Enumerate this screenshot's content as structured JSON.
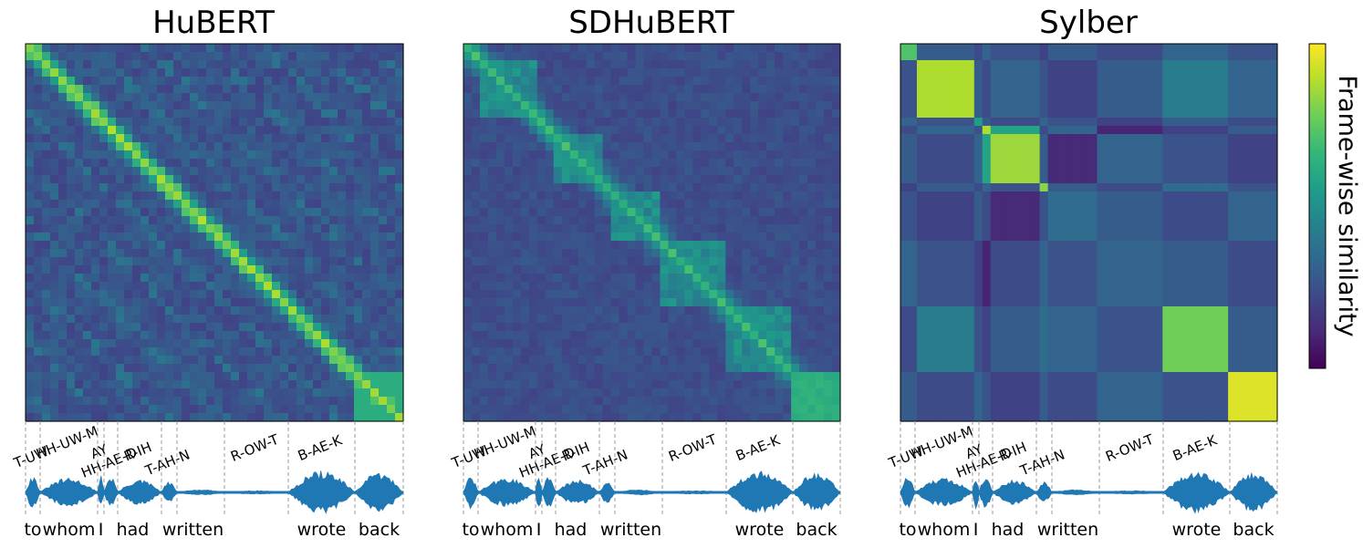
{
  "colors": {
    "viridis": [
      "#440154",
      "#482878",
      "#3e4989",
      "#31688e",
      "#26828e",
      "#1f9e89",
      "#35b779",
      "#6ece58",
      "#b5de2b",
      "#fde725"
    ],
    "waveform": "#1f77b4",
    "boundary": "#9a9a9a"
  },
  "chart_data": [
    {
      "type": "heatmap",
      "title": "HuBERT",
      "model": "hubert",
      "phones": [
        "T-UW",
        "HH-UW-M",
        "AY",
        "HH-AE-D",
        "R-IH",
        "T-AH-N",
        "R-OW-T",
        "B-AE-K"
      ],
      "words": [
        "to",
        "whom",
        "I",
        "had",
        "written",
        "wrote",
        "back"
      ]
    },
    {
      "type": "heatmap",
      "title": "SDHuBERT",
      "model": "sdhubert",
      "phones": [
        "T-UW",
        "HH-UW-M",
        "AY",
        "HH-AE-D",
        "R-IH",
        "T-AH-N",
        "R-OW-T",
        "B-AE-K"
      ],
      "words": [
        "to",
        "whom",
        "I",
        "had",
        "written",
        "wrote",
        "back"
      ]
    },
    {
      "type": "heatmap",
      "title": "Sylber",
      "model": "sylber",
      "phones": [
        "T-UW",
        "HH-UW-M",
        "AY",
        "HH-AE-D",
        "R-IH",
        "T-AH-N",
        "R-OW-T",
        "B-AE-K"
      ],
      "words": [
        "to",
        "whom",
        "I",
        "had",
        "written",
        "wrote",
        "back"
      ]
    }
  ],
  "colorbar": {
    "label": "Frame-wise similarity",
    "colormap": "viridis"
  }
}
